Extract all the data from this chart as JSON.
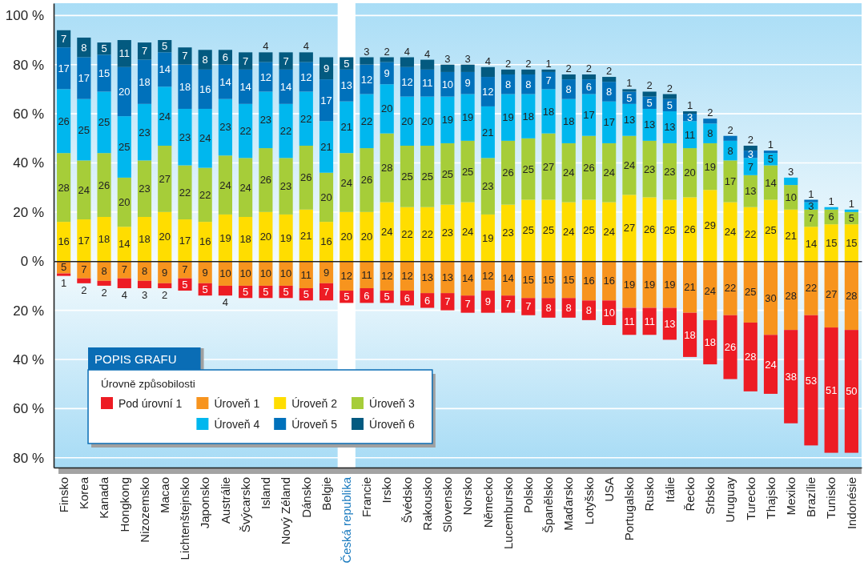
{
  "chart_data": [
    {
      "type": "bar",
      "stacked": true,
      "data_labels": true,
      "tick_labels": "y",
      "categories": [
        "Finsko",
        "Korea",
        "Kanada",
        "Hongkong",
        "Nizozemsko",
        "Macao",
        "Lichtenštejnsko",
        "Japonsko",
        "Austrálie",
        "Švýcarsko",
        "Island",
        "Nový Zéland",
        "Dánsko",
        "Belgie",
        "Česká republika",
        "Francie",
        "Irsko",
        "Švédsko",
        "Rakousko",
        "Slovensko",
        "Norsko",
        "Německo",
        "Lucembursko",
        "Polsko",
        "Španělsko",
        "Maďarsko",
        "Lotyšsko",
        "USA",
        "Portugalsko",
        "Rusko",
        "Itálie",
        "Řecko",
        "Srbsko",
        "Uruguay",
        "Turecko",
        "Thajsko",
        "Mexiko",
        "Brazílie",
        "Tunisko",
        "Indonésie"
      ],
      "series": [
        {
          "name": "Úroveň 2",
          "color": "#ffdd00",
          "values": [
            16,
            17,
            18,
            14,
            18,
            20,
            17,
            16,
            19,
            18,
            20,
            19,
            21,
            16,
            20,
            20,
            24,
            22,
            22,
            23,
            24,
            19,
            23,
            25,
            25,
            24,
            25,
            24,
            27,
            26,
            25,
            26,
            29,
            24,
            22,
            25,
            21,
            14,
            15,
            15
          ]
        },
        {
          "name": "Úroveň 3",
          "color": "#a6cd39",
          "values": [
            28,
            24,
            26,
            20,
            23,
            27,
            22,
            22,
            24,
            24,
            26,
            23,
            26,
            20,
            24,
            26,
            28,
            25,
            25,
            25,
            25,
            23,
            26,
            25,
            27,
            24,
            26,
            24,
            24,
            23,
            23,
            20,
            19,
            17,
            13,
            14,
            10,
            7,
            6,
            5
          ]
        },
        {
          "name": "Úroveň 4",
          "color": "#00b7ee",
          "values": [
            26,
            25,
            25,
            25,
            23,
            24,
            23,
            24,
            23,
            22,
            23,
            22,
            22,
            21,
            21,
            22,
            20,
            20,
            20,
            19,
            19,
            21,
            19,
            18,
            18,
            18,
            17,
            17,
            13,
            13,
            13,
            11,
            8,
            8,
            7,
            5,
            3,
            3,
            1,
            1
          ]
        },
        {
          "name": "Úroveň 5",
          "color": "#0071bb",
          "values": [
            17,
            17,
            15,
            20,
            18,
            14,
            18,
            16,
            14,
            14,
            12,
            14,
            12,
            17,
            13,
            12,
            9,
            12,
            11,
            10,
            9,
            12,
            8,
            8,
            7,
            8,
            6,
            8,
            5,
            5,
            5,
            3,
            2,
            2,
            3,
            1,
            null,
            1,
            null,
            null
          ]
        },
        {
          "name": "Úroveň 6",
          "color": "#035a80",
          "values": [
            7,
            8,
            5,
            11,
            7,
            5,
            7,
            8,
            6,
            7,
            4,
            7,
            4,
            9,
            5,
            3,
            2,
            4,
            4,
            3,
            3,
            4,
            2,
            2,
            1,
            2,
            2,
            2,
            1,
            2,
            2,
            1,
            null,
            null,
            2,
            null,
            null,
            null,
            null,
            null
          ]
        }
      ],
      "ylim": [
        0,
        105
      ],
      "yticks": [
        {
          "value": 100,
          "label": "100 %"
        },
        {
          "value": 80,
          "label": "80 %"
        },
        {
          "value": 60,
          "label": "60 %"
        },
        {
          "value": 40,
          "label": "40 %"
        },
        {
          "value": 20,
          "label": "20 %"
        },
        {
          "value": 0,
          "label": "0 %"
        }
      ],
      "grid": "y",
      "bands": [
        {
          "axis": "x",
          "from": "Česká republika",
          "to": "Česká republika",
          "color": "#ffffff"
        }
      ],
      "legend": "bottom left"
    },
    {
      "type": "bar",
      "stacked": true,
      "data_labels": true,
      "categories": [
        "Finsko",
        "Korea",
        "Kanada",
        "Hongkong",
        "Nizozemsko",
        "Macao",
        "Lichtenštejnsko",
        "Japonsko",
        "Austrálie",
        "Švýcarsko",
        "Island",
        "Nový Zéland",
        "Dánsko",
        "Belgie",
        "Česká republika",
        "Francie",
        "Irsko",
        "Švédsko",
        "Rakousko",
        "Slovensko",
        "Norsko",
        "Německo",
        "Lucembursko",
        "Polsko",
        "Španělsko",
        "Maďarsko",
        "Lotyšsko",
        "USA",
        "Portugalsko",
        "Rusko",
        "Itálie",
        "Řecko",
        "Srbsko",
        "Uruguay",
        "Turecko",
        "Thajsko",
        "Mexiko",
        "Brazílie",
        "Tunisko",
        "Indonésie"
      ],
      "series": [
        {
          "name": "Úroveň 1",
          "color": "#f7941e",
          "values": [
            5,
            7,
            8,
            7,
            8,
            9,
            7,
            9,
            10,
            10,
            10,
            10,
            11,
            9,
            12,
            11,
            12,
            12,
            13,
            13,
            14,
            12,
            14,
            15,
            15,
            15,
            16,
            16,
            19,
            19,
            19,
            21,
            24,
            22,
            25,
            30,
            28,
            22,
            27,
            28
          ]
        },
        {
          "name": "Pod úrovní 1",
          "color": "#ed1c24",
          "values": [
            1,
            2,
            2,
            4,
            3,
            2,
            5,
            5,
            4,
            5,
            5,
            5,
            5,
            7,
            5,
            6,
            5,
            6,
            6,
            7,
            7,
            9,
            7,
            7,
            8,
            8,
            8,
            10,
            11,
            11,
            13,
            18,
            18,
            26,
            28,
            24,
            38,
            53,
            51,
            50
          ]
        }
      ],
      "ylim": [
        84,
        0
      ],
      "yticks": [
        {
          "value": 20,
          "label": "20 %"
        },
        {
          "value": 40,
          "label": "40 %"
        },
        {
          "value": 60,
          "label": "60 %"
        },
        {
          "value": 80,
          "label": "80 %"
        }
      ],
      "grid": "y",
      "bands": [
        {
          "axis": "x",
          "from": "Česká republika",
          "to": "Česká republika",
          "color": "#ffffff"
        }
      ],
      "legend": "bottom left",
      "legend_title": "Úrovně způsobilosti",
      "annotations": [
        "POPIS GRAFU"
      ]
    }
  ]
}
